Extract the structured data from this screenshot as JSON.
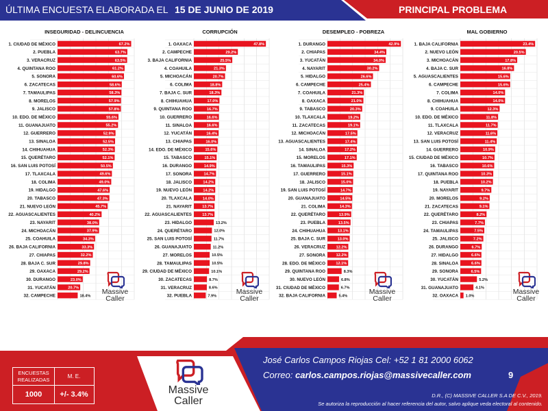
{
  "header": {
    "title_prefix": "ÚLTIMA ENCUESTA ELABORADA EL",
    "title_date": "15 DE JUNIO DE 2019",
    "subtitle": "PRINCIPAL PROBLEMA"
  },
  "colors": {
    "navy": "#2a3393",
    "red": "#cc1f24",
    "bar_red": "#e8141f",
    "grid": "#d0d0d0"
  },
  "logo": {
    "line1": "Massive",
    "line2": "Caller"
  },
  "footer": {
    "contact_line": "José Carlos Campos Riojas Cel: +52 1 81 2000 6062",
    "email_label": "Correo:",
    "email": "carlos.campos.riojas@massivecaller.com",
    "page_number": "9",
    "rights_line1": "D.R., (C) MASSIVE CALLER S.A DE C.V., 2019.",
    "rights_line2": "Se autoriza la reproducción al hacer referencia del autor, salvo aplique veda electoral al contenido.",
    "sample_header_1a": "ENCUESTAS",
    "sample_header_1b": "REALIZADAS",
    "sample_header_2": "M. E.",
    "sample_value_1": "1000",
    "sample_value_2": "+/- 3.4%"
  },
  "chart_data": [
    {
      "type": "bar",
      "orientation": "horizontal",
      "title": "INSEGURIDAD - DELINCUENCIA",
      "xlim": [
        0,
        70
      ],
      "categories": [
        "1. CIUDAD DE MÉXICO",
        "2. PUEBLA",
        "3. VERACRUZ",
        "4. QUINTANA ROO",
        "5. SONORA",
        "6. ZACATECAS",
        "7. TAMAULIPAS",
        "8. MORELOS",
        "9. JALISCO",
        "10. EDO. DE MÉXICO",
        "11. GUANAJUATO",
        "12. GUERRERO",
        "13. SINALOA",
        "14. CHIHUAHUA",
        "15. QUERÉTARO",
        "16. SAN LUIS POTOSÍ",
        "17. TLAXCALA",
        "18. COLIMA",
        "19. HIDALGO",
        "20. TABASCO",
        "21. NUEVO LEÓN",
        "22. AGUASCALIENTES",
        "23. NAYARIT",
        "24. MICHOACÁN",
        "25. COAHUILA",
        "26. BAJA CALIFORNIA",
        "27. CHIAPAS",
        "28. BAJA C. SUR",
        "29. OAXACA",
        "30. DURANGO",
        "31. YUCATÁN",
        "32. CAMPECHE"
      ],
      "values": [
        67.2,
        63.7,
        63.5,
        61.2,
        60.6,
        58.6,
        58.3,
        57.9,
        57.8,
        55.6,
        55.2,
        52.9,
        52.5,
        52.3,
        52.1,
        50.5,
        49.6,
        49.0,
        47.6,
        47.3,
        45.7,
        40.2,
        38.0,
        37.9,
        34.3,
        33.3,
        32.2,
        29.8,
        29.2,
        23.0,
        20.7,
        18.4
      ],
      "labels": [
        "67.2%",
        "63.7%",
        "63.5%",
        "61.2%",
        "60.6%",
        "58.6%",
        "58.3%",
        "57.9%",
        "57.8%",
        "55.6%",
        "55.2%",
        "52.9%",
        "52.5%",
        "52.3%",
        "52.1%",
        "50.5%",
        "49.6%",
        "49.0%",
        "47.6%",
        "47.3%",
        "45.7%",
        "40.2%",
        "38.0%",
        "37.9%",
        "34.3%",
        "33.3%",
        "32.2%",
        "29.8%",
        "29.2%",
        "23.0%",
        "20.7%",
        "18.4%"
      ]
    },
    {
      "type": "bar",
      "orientation": "horizontal",
      "title": "CORRUPCIÓN",
      "xlim": [
        0,
        50
      ],
      "categories": [
        "1. OAXACA",
        "2. CAMPECHE",
        "3. BAJA CALIFORNIA",
        "4. COAHUILA",
        "5. MICHOACÁN",
        "6. COLIMA",
        "7. BAJA C. SUR",
        "8. CHIHUAHUA",
        "9. QUINTANA ROO",
        "10. GUERRERO",
        "11. SINALOA",
        "12. YUCATÁN",
        "13. CHIAPAS",
        "14. EDO. DE MÉXICO",
        "15. TABASCO",
        "16. DURANGO",
        "17. SONORA",
        "18. JALISCO",
        "19. NUEVO LEÓN",
        "20. TLAXCALA",
        "21. NAYARIT",
        "22. AGUASCALIENTES",
        "23. HIDALGO",
        "24. QUERÉTARO",
        "25. SAN LUIS POTOSÍ",
        "26. GUANAJUATO",
        "27. MORELOS",
        "28. TAMAULIPAS",
        "29. CIUDAD DE MÉXICO",
        "30. ZACATECAS",
        "31. VERACRUZ",
        "32. PUEBLA"
      ],
      "values": [
        47.8,
        29.2,
        25.5,
        21.3,
        20.7,
        18.8,
        18.3,
        17.0,
        16.7,
        16.6,
        16.6,
        16.4,
        16.0,
        15.6,
        15.1,
        14.9,
        14.7,
        14.2,
        14.2,
        14.0,
        13.7,
        13.7,
        13.2,
        12.0,
        11.7,
        11.2,
        10.5,
        10.5,
        10.1,
        8.7,
        8.6,
        7.9
      ],
      "labels": [
        "47.8%",
        "29.2%",
        "25.5%",
        "21.3%",
        "20.7%",
        "18.8%",
        "18.3%",
        "17.0%",
        "16.7%",
        "16.6%",
        "16.6%",
        "16.4%",
        "16.0%",
        "15.6%",
        "15.1%",
        "14.9%",
        "14.7%",
        "14.2%",
        "14.2%",
        "14.0%",
        "13.7%",
        "13.7%",
        "13.2%",
        "12.0%",
        "11.7%",
        "11.2%",
        "10.5%",
        "10.5%",
        "10.1%",
        "8.7%",
        "8.6%",
        "7.9%"
      ]
    },
    {
      "type": "bar",
      "orientation": "horizontal",
      "title": "DESEMPLEO - POBREZA",
      "xlim": [
        0,
        44
      ],
      "categories": [
        "1. DURANGO",
        "2. CHIAPAS",
        "3. YUCATÁN",
        "4. NAYARIT",
        "5. HIDALGO",
        "6. CAMPECHE",
        "7. COAHUILA",
        "8. OAXACA",
        "9. TABASCO",
        "10. TLAXCALA",
        "11. ZACATECAS",
        "12. MICHOACÁN",
        "13. AGUASCALIENTES",
        "14. SINALOA",
        "15. MORELOS",
        "16. TAMAULIPAS",
        "17. GUERRERO",
        "18. JALISCO",
        "19. SAN LUIS POTOSÍ",
        "20. GUANAJUATO",
        "21. COLIMA",
        "22. QUERÉTARO",
        "23. PUEBLA",
        "24. CHIHUAHUA",
        "25. BAJA C. SUR",
        "26. VERACRUZ",
        "27. SONORA",
        "28. EDO. DE MÉXICO",
        "29. QUINTANA ROO",
        "30. NUEVO LEÓN",
        "31. CIUDAD DE MÉXICO",
        "32. BAJA CALIFORNIA"
      ],
      "values": [
        42.9,
        34.4,
        34.0,
        30.2,
        26.6,
        25.4,
        21.3,
        21.0,
        20.3,
        19.2,
        19.1,
        17.5,
        17.4,
        17.2,
        17.1,
        15.3,
        15.1,
        15.0,
        14.7,
        14.5,
        14.3,
        13.9,
        13.5,
        13.1,
        13.0,
        12.2,
        12.2,
        12.1,
        8.3,
        6.8,
        6.7,
        5.4
      ],
      "labels": [
        "42.9%",
        "34.4%",
        "34.0%",
        "30.2%",
        "26.6%",
        "25.4%",
        "21.3%",
        "21.0%",
        "20.3%",
        "19.2%",
        "19.1%",
        "17.5%",
        "17.4%",
        "17.2%",
        "17.1%",
        "15.3%",
        "15.1%",
        "15.0%",
        "14.7%",
        "14.5%",
        "14.3%",
        "13.9%",
        "13.5%",
        "13.1%",
        "13.0%",
        "12.2%",
        "12.2%",
        "12.1%",
        "8.3%",
        "6.8%",
        "6.7%",
        "5.4%"
      ]
    },
    {
      "type": "bar",
      "orientation": "horizontal",
      "title": "MAL GOBIERNO",
      "xlim": [
        0,
        24
      ],
      "categories": [
        "1. BAJA CALIFORNIA",
        "2. NUEVO LEÓN",
        "3. MICHOACÁN",
        "4. BAJA C. SUR",
        "5. AGUASCALIENTES",
        "6. CAMPECHE",
        "7. COLIMA",
        "8. CHIHUAHUA",
        "9. COAHUILA",
        "10. EDO. DE MÉXICO",
        "11. TLAXCALA",
        "12. VERACRUZ",
        "13. SAN LUIS POTOSÍ",
        "14. GUERRERO",
        "15. CIUDAD DE MÉXICO",
        "16. TABASCO",
        "17. QUINTANA ROO",
        "18. PUEBLA",
        "19. NAYARIT",
        "20. MORELOS",
        "21. ZACATECAS",
        "22. QUERÉTARO",
        "23. CHIAPAS",
        "24. TAMAULIPAS",
        "25. JALISCO",
        "26. DURANGO",
        "27. HIDALGO",
        "28. SINALOA",
        "29. SONORA",
        "30. YUCATÁN",
        "31. GUANAJUATO",
        "32. OAXACA"
      ],
      "values": [
        23.4,
        20.5,
        17.8,
        16.8,
        15.6,
        15.6,
        14.0,
        14.0,
        12.3,
        11.8,
        11.7,
        11.6,
        11.4,
        10.9,
        10.7,
        10.6,
        10.3,
        10.2,
        9.7,
        9.2,
        9.1,
        8.2,
        7.7,
        7.5,
        7.2,
        6.7,
        6.6,
        6.6,
        6.5,
        5.2,
        4.1,
        1.0
      ],
      "labels": [
        "23.4%",
        "20.5%",
        "17.8%",
        "16.8%",
        "15.6%",
        "15.6%",
        "14.0%",
        "14.0%",
        "12.3%",
        "11.8%",
        "11.7%",
        "11.6%",
        "11.4%",
        "10.9%",
        "10.7%",
        "10.6%",
        "10.3%",
        "10.2%",
        "9.7%",
        "9.2%",
        "9.1%",
        "8.2%",
        "7.7%",
        "7.5%",
        "7.2%",
        "6.7%",
        "6.6%",
        "6.6%",
        "6.5%",
        "5.2%",
        "4.1%",
        "1.0%"
      ]
    }
  ]
}
